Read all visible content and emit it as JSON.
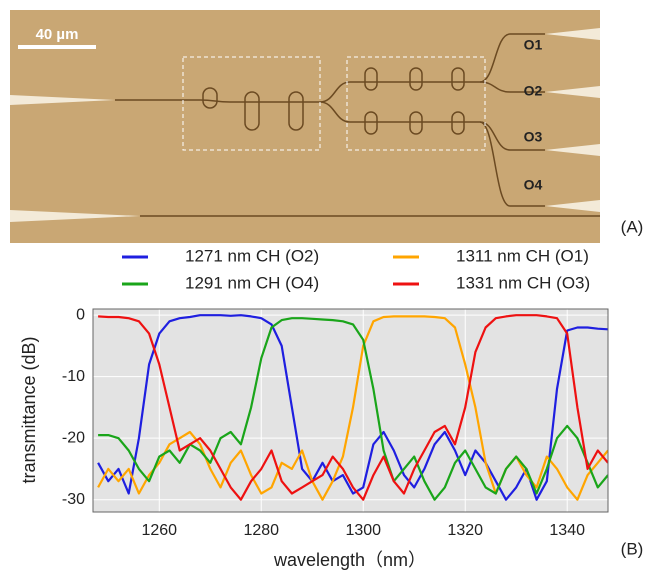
{
  "micrograph": {
    "scale_bar": "40 µm",
    "ports": [
      "O1",
      "O2",
      "O3",
      "O4"
    ],
    "panel_label": "(A)"
  },
  "chart_data": {
    "type": "line",
    "panel_label": "(B)",
    "x_label": "wavelength（nm）",
    "y_label": "transmittance (dB)",
    "xlim": [
      1247,
      1348
    ],
    "ylim": [
      -32,
      1
    ],
    "xticks": [
      1260,
      1280,
      1300,
      1320,
      1340
    ],
    "yticks": [
      -30,
      -20,
      -10,
      0
    ],
    "grid": true,
    "x": [
      1248,
      1250,
      1252,
      1254,
      1256,
      1258,
      1260,
      1262,
      1264,
      1266,
      1268,
      1270,
      1272,
      1274,
      1276,
      1278,
      1280,
      1282,
      1284,
      1286,
      1288,
      1290,
      1292,
      1294,
      1296,
      1298,
      1300,
      1302,
      1304,
      1306,
      1308,
      1310,
      1312,
      1314,
      1316,
      1318,
      1320,
      1322,
      1324,
      1326,
      1328,
      1330,
      1332,
      1334,
      1336,
      1338,
      1340,
      1342,
      1344,
      1346,
      1348
    ],
    "series": [
      {
        "name": "1271 nm CH (O2)",
        "color": "#1f1fe0",
        "values": [
          -24,
          -27,
          -25,
          -29,
          -20,
          -8,
          -3,
          -1,
          -0.5,
          -0.3,
          0,
          0,
          0,
          -0.1,
          0,
          -0.2,
          -0.5,
          -1.5,
          -5,
          -15,
          -25,
          -27,
          -24,
          -27,
          -26,
          -29,
          -28,
          -21,
          -19,
          -22,
          -26,
          -28,
          -25,
          -21,
          -19,
          -22,
          -26,
          -22,
          -24,
          -27,
          -30,
          -28,
          -25,
          -30,
          -27,
          -12,
          -2.5,
          -2,
          -2,
          -2.2,
          -2.3
        ]
      },
      {
        "name": "1311 nm CH (O1)",
        "color": "#ffa500",
        "values": [
          -28,
          -25,
          -27,
          -25,
          -29,
          -26,
          -24,
          -21,
          -20,
          -19,
          -21,
          -25,
          -28,
          -24,
          -22,
          -26,
          -29,
          -28,
          -24,
          -25,
          -22,
          -27,
          -30,
          -27,
          -23,
          -15,
          -5,
          -1,
          -0.3,
          -0.2,
          -0.2,
          -0.2,
          -0.2,
          -0.3,
          -0.5,
          -2,
          -8,
          -15,
          -24,
          -29,
          -25,
          -23,
          -26,
          -28,
          -23,
          -25,
          -28,
          -30,
          -26,
          -24,
          -22
        ]
      },
      {
        "name": "1291 nm CH (O4)",
        "color": "#1aa51a",
        "values": [
          -19.5,
          -19.5,
          -20,
          -22,
          -25,
          -27,
          -23,
          -22,
          -24,
          -21,
          -22,
          -24,
          -20,
          -19,
          -21,
          -15,
          -7,
          -2,
          -0.8,
          -0.5,
          -0.5,
          -0.6,
          -0.7,
          -0.8,
          -1,
          -1.5,
          -4,
          -12,
          -22,
          -27,
          -25,
          -23,
          -27,
          -30,
          -28,
          -24,
          -22,
          -25,
          -28,
          -29,
          -25,
          -23,
          -25,
          -29,
          -25,
          -20,
          -18,
          -20,
          -24,
          -28,
          -26
        ]
      },
      {
        "name": "1331 nm CH (O3)",
        "color": "#ee1111",
        "values": [
          -0.2,
          -0.3,
          -0.3,
          -0.5,
          -1,
          -3,
          -8,
          -15,
          -22,
          -21,
          -20,
          -22,
          -25,
          -28,
          -30,
          -27,
          -25,
          -22,
          -27,
          -29,
          -28,
          -27,
          -26,
          -23,
          -25,
          -28,
          -30,
          -26,
          -23,
          -27,
          -29,
          -25,
          -22,
          -19,
          -18,
          -21,
          -15,
          -6,
          -2,
          -0.5,
          -0.2,
          0,
          0,
          0,
          -0.2,
          -0.5,
          -3,
          -15,
          -25,
          -22,
          -24
        ]
      }
    ]
  }
}
